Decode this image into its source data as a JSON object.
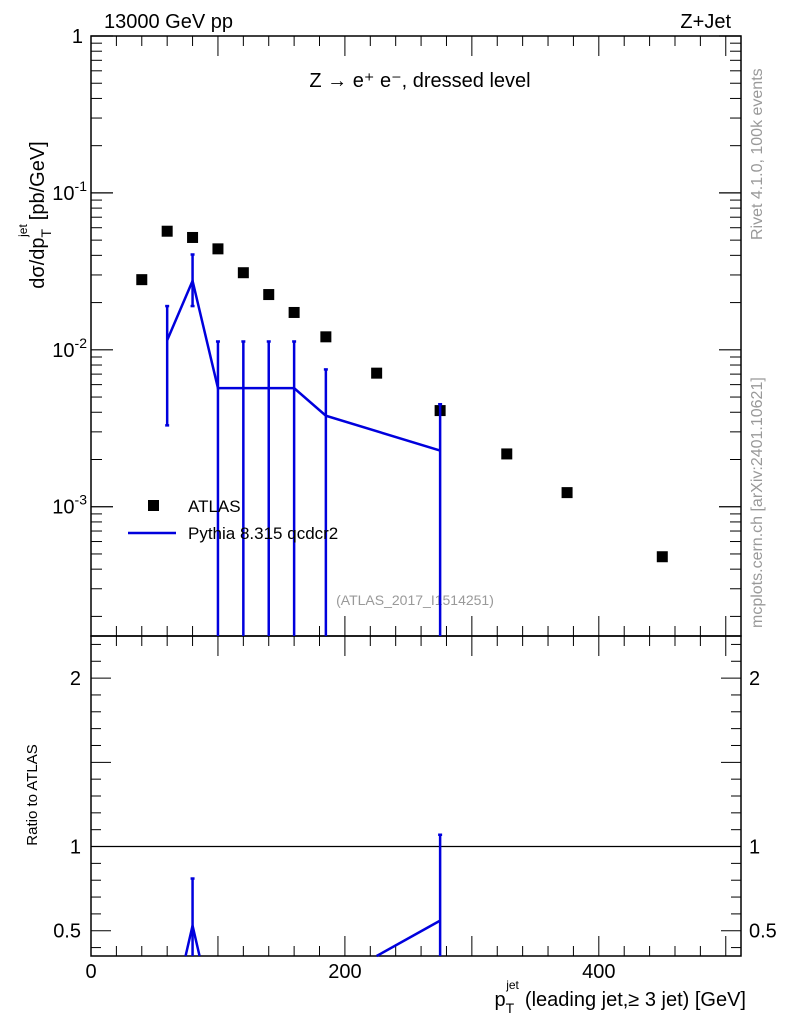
{
  "header": {
    "energy_label": "13000 GeV pp",
    "process_label": "Z+Jet",
    "process_title": "Z → e⁺ e⁻, dressed level",
    "analysis_id": "(ATLAS_2017_I1514251)",
    "side_label_top": "Rivet 4.1.0,  100k events",
    "side_label_bottom": "mcplots.cern.ch [arXiv:2401.10621]"
  },
  "chart_data": [
    {
      "type": "scatter",
      "title": "Z → e⁺ e⁻, dressed level",
      "xlabel": "p_T^jet (leading jet, ≥ 3 jet) [GeV]",
      "ylabel": "dσ/dp_T^jet [pb/GeV]",
      "ylabel_main": "dσ/dp",
      "ylabel_unit": "[pb/GeV]",
      "yscale": "log",
      "xlim": [
        0,
        512
      ],
      "ylim": [
        0.00015,
        1
      ],
      "y_tick_labels": [
        "1",
        "10⁻¹",
        "10⁻²",
        "10⁻³"
      ],
      "legend_position": "lower-left",
      "series": [
        {
          "name": "ATLAS",
          "color": "#000000",
          "marker": "square",
          "x": [
            40,
            60,
            80,
            100,
            120,
            140,
            160,
            185,
            225,
            275,
            327.5,
            375,
            450
          ],
          "y": [
            0.028,
            0.057,
            0.052,
            0.044,
            0.031,
            0.0225,
            0.0173,
            0.0121,
            0.0071,
            0.0041,
            0.00217,
            0.00123,
            0.00048
          ]
        },
        {
          "name": "Pythia 8.315 qcdcr2",
          "color": "#0000dd",
          "marker": "line",
          "x": [
            60,
            80,
            100,
            120,
            140,
            160,
            185,
            275
          ],
          "y": [
            0.0115,
            0.0275,
            0.0057,
            0.0057,
            0.0057,
            0.0057,
            0.0038,
            0.00228
          ],
          "err_low": [
            0.0033,
            0.019,
            0.00015,
            0.00015,
            0.00015,
            0.00015,
            0.00015,
            0.00015
          ],
          "err_high": [
            0.019,
            0.0405,
            0.0113,
            0.0113,
            0.0113,
            0.0113,
            0.0075,
            0.0045
          ]
        }
      ]
    },
    {
      "type": "line",
      "ylabel": "Ratio to ATLAS",
      "xlim": [
        0,
        512
      ],
      "ylim": [
        0.35,
        2.25
      ],
      "x_tick_labels": [
        "0",
        "200",
        "400"
      ],
      "y_tick_labels": [
        "0.5",
        "1",
        "2"
      ],
      "reference_line": 1,
      "series": [
        {
          "name": "Pythia 8.315 qcdcr2",
          "color": "#0000dd",
          "x": [
            80,
            275
          ],
          "y": [
            0.53,
            0.56
          ],
          "err_high": [
            0.81,
            1.07
          ]
        }
      ]
    }
  ]
}
